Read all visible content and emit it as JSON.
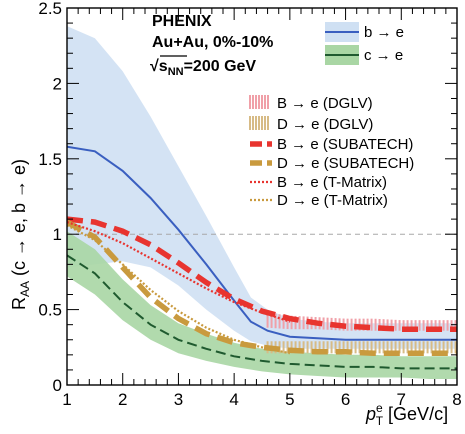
{
  "chart_data": {
    "type": "line",
    "annotation": {
      "line1": "PHENIX",
      "line2": "Au+Au, 0%-10%",
      "line3_sqrt": "√",
      "line3_s": "s",
      "line3_sub": "NN",
      "line3_rest": "=200 GeV"
    },
    "xlabel": {
      "main": "p",
      "sup": "e",
      "sub": "T",
      "unit": " [GeV/c]"
    },
    "ylabel": {
      "main": "R",
      "sub": "AA",
      "rest": " (c → e, b → e)"
    },
    "xlim": [
      1,
      8
    ],
    "ylim": [
      0,
      2.5
    ],
    "xticks": [
      1,
      2,
      3,
      4,
      5,
      6,
      7,
      8
    ],
    "xtick_labels": [
      "1",
      "2",
      "3",
      "4",
      "5",
      "6",
      "7",
      "8"
    ],
    "yticks": [
      0,
      0.5,
      1,
      1.5,
      2,
      2.5
    ],
    "ytick_labels": [
      "0",
      "0.5",
      "1",
      "1.5",
      "2",
      "2.5"
    ],
    "reference_line": 1,
    "series": [
      {
        "name": "b → e",
        "kind": "band-central",
        "color": "#3a5fc0",
        "band_color": "#cfe0f3",
        "x": [
          1.0,
          1.5,
          2.0,
          2.5,
          3.0,
          3.5,
          4.0,
          4.3,
          4.6,
          5.0,
          5.5,
          6.0,
          6.5,
          7.0,
          7.5,
          8.0
        ],
        "y": [
          1.58,
          1.55,
          1.42,
          1.24,
          1.03,
          0.8,
          0.56,
          0.42,
          0.36,
          0.32,
          0.31,
          0.3,
          0.3,
          0.3,
          0.3,
          0.3
        ],
        "y_low": [
          0.78,
          0.8,
          0.82,
          0.78,
          0.66,
          0.5,
          0.36,
          0.29,
          0.26,
          0.24,
          0.24,
          0.24,
          0.24,
          0.24,
          0.24,
          0.24
        ],
        "y_high": [
          2.38,
          2.3,
          2.08,
          1.78,
          1.45,
          1.12,
          0.78,
          0.58,
          0.5,
          0.44,
          0.42,
          0.41,
          0.41,
          0.41,
          0.41,
          0.41
        ]
      },
      {
        "name": "c → e",
        "kind": "band-central",
        "color": "#1f5a2f",
        "band_color": "#a9d6a4",
        "x": [
          1.0,
          1.5,
          2.0,
          2.5,
          3.0,
          3.5,
          4.0,
          4.5,
          5.0,
          5.5,
          6.0,
          6.5,
          7.0,
          7.5,
          8.0
        ],
        "y": [
          0.86,
          0.74,
          0.55,
          0.4,
          0.3,
          0.24,
          0.19,
          0.16,
          0.14,
          0.13,
          0.12,
          0.12,
          0.11,
          0.11,
          0.11
        ],
        "y_low": [
          0.72,
          0.6,
          0.43,
          0.3,
          0.21,
          0.16,
          0.12,
          0.09,
          0.07,
          0.06,
          0.05,
          0.05,
          0.05,
          0.04,
          0.04
        ],
        "y_high": [
          1.02,
          0.9,
          0.7,
          0.53,
          0.41,
          0.34,
          0.28,
          0.24,
          0.22,
          0.21,
          0.2,
          0.2,
          0.19,
          0.19,
          0.19
        ]
      },
      {
        "name": "B → e (DGLV)",
        "kind": "dglv-band",
        "color": "#f0a0a8",
        "x": [
          4.6,
          5.0,
          5.5,
          6.0,
          6.5,
          7.0,
          7.5,
          8.0
        ],
        "y_low": [
          0.38,
          0.37,
          0.37,
          0.36,
          0.36,
          0.36,
          0.36,
          0.36
        ],
        "y_high": [
          0.48,
          0.46,
          0.45,
          0.44,
          0.44,
          0.43,
          0.43,
          0.43
        ]
      },
      {
        "name": "D → e (DGLV)",
        "kind": "dglv-band",
        "color": "#d7bb86",
        "x": [
          4.6,
          5.0,
          5.5,
          6.0,
          6.5,
          7.0,
          7.5,
          8.0
        ],
        "y_low": [
          0.21,
          0.21,
          0.21,
          0.21,
          0.21,
          0.21,
          0.21,
          0.21
        ],
        "y_high": [
          0.29,
          0.29,
          0.29,
          0.29,
          0.29,
          0.29,
          0.29,
          0.29
        ]
      },
      {
        "name": "B → e (SUBATECH)",
        "kind": "thick-dash",
        "color": "#e8342f",
        "x": [
          1.0,
          1.5,
          2.0,
          2.5,
          3.0,
          3.5,
          4.0,
          4.5,
          5.0,
          5.5,
          6.0,
          6.5,
          7.0,
          7.5,
          8.0
        ],
        "y": [
          1.1,
          1.08,
          1.02,
          0.93,
          0.81,
          0.68,
          0.57,
          0.49,
          0.44,
          0.41,
          0.39,
          0.38,
          0.37,
          0.37,
          0.37
        ]
      },
      {
        "name": "D → e (SUBATECH)",
        "kind": "thick-dash",
        "color": "#c99a3e",
        "x": [
          1.0,
          1.5,
          2.0,
          2.5,
          3.0,
          3.5,
          4.0,
          4.5,
          5.0,
          5.5,
          6.0,
          6.5,
          7.0,
          7.5,
          8.0
        ],
        "y": [
          1.08,
          0.98,
          0.78,
          0.58,
          0.44,
          0.34,
          0.28,
          0.25,
          0.23,
          0.22,
          0.22,
          0.21,
          0.21,
          0.21,
          0.21
        ]
      },
      {
        "name": "B → e (T-Matrix)",
        "kind": "dotted",
        "color": "#e8342f",
        "x": [
          1.0,
          1.5,
          2.0,
          2.5,
          3.0,
          3.5,
          4.0,
          4.5,
          5.0
        ],
        "y": [
          1.08,
          1.02,
          0.94,
          0.84,
          0.74,
          0.64,
          0.55,
          0.48,
          0.42
        ]
      },
      {
        "name": "D → e (T-Matrix)",
        "kind": "dotted",
        "color": "#c99a3e",
        "x": [
          1.0,
          1.5,
          2.0,
          2.5,
          3.0,
          3.5,
          4.0,
          4.5,
          5.0
        ],
        "y": [
          1.06,
          0.96,
          0.8,
          0.63,
          0.49,
          0.38,
          0.3,
          0.25,
          0.21
        ]
      }
    ]
  }
}
